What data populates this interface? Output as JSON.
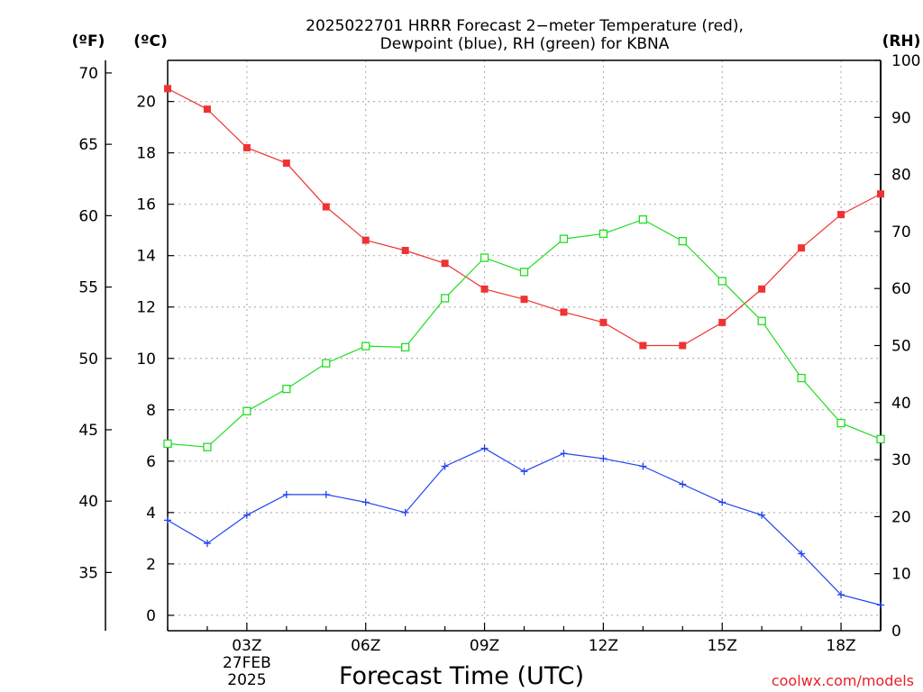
{
  "chart_data": {
    "type": "line",
    "title": "2025022701 HRRR Forecast 2−meter Temperature (red),",
    "subtitle": "Dewpoint (blue), RH (green) for KBNA",
    "xlabel": "Forecast Time (UTC)",
    "unit_labels": {
      "fahrenheit": "(ºF)",
      "celsius": "(ºC)",
      "rh": "(RH)"
    },
    "x": [
      1,
      2,
      3,
      4,
      5,
      6,
      7,
      8,
      9,
      10,
      11,
      12,
      13,
      14,
      15,
      16,
      17,
      18,
      19
    ],
    "xlim": [
      1,
      19
    ],
    "x_ticks": [
      {
        "value": 3,
        "label": "03Z",
        "sublabels": [
          "27FEB",
          "2025"
        ]
      },
      {
        "value": 6,
        "label": "06Z"
      },
      {
        "value": 9,
        "label": "09Z"
      },
      {
        "value": 12,
        "label": "12Z"
      },
      {
        "value": 15,
        "label": "15Z"
      },
      {
        "value": 18,
        "label": "18Z"
      }
    ],
    "ylim_celsius": [
      -0.6,
      21.6
    ],
    "y_ticks_celsius": [
      0,
      2,
      4,
      6,
      8,
      10,
      12,
      14,
      16,
      18,
      20
    ],
    "y_ticks_fahrenheit": [
      35,
      40,
      45,
      50,
      55,
      60,
      65,
      70
    ],
    "ylim_rh": [
      0,
      100
    ],
    "y_ticks_rh": [
      0,
      10,
      20,
      30,
      40,
      50,
      60,
      70,
      80,
      90,
      100
    ],
    "grid": true,
    "series": [
      {
        "name": "Temperature",
        "axis": "celsius",
        "color": "#ee3333",
        "marker": "filled-square",
        "values": [
          20.5,
          19.7,
          18.2,
          17.6,
          15.9,
          14.6,
          14.2,
          13.7,
          12.7,
          12.3,
          11.8,
          11.4,
          10.5,
          10.5,
          11.4,
          12.7,
          14.3,
          15.6,
          16.4
        ]
      },
      {
        "name": "Dewpoint",
        "axis": "celsius",
        "color": "#2244ee",
        "marker": "plus",
        "values": [
          3.7,
          2.8,
          3.9,
          4.7,
          4.7,
          4.4,
          4.0,
          5.8,
          6.5,
          5.6,
          6.3,
          6.1,
          5.8,
          5.1,
          4.4,
          3.9,
          2.4,
          0.8,
          0.4
        ]
      },
      {
        "name": "RH",
        "axis": "rh",
        "color": "#22dd22",
        "marker": "open-square",
        "values": [
          32.8,
          32.2,
          38.5,
          42.4,
          46.9,
          49.9,
          49.7,
          58.3,
          65.4,
          62.9,
          68.7,
          69.6,
          72.1,
          68.3,
          61.3,
          54.3,
          44.3,
          36.4,
          33.6
        ]
      }
    ]
  },
  "credit": "coolwx.com/models"
}
